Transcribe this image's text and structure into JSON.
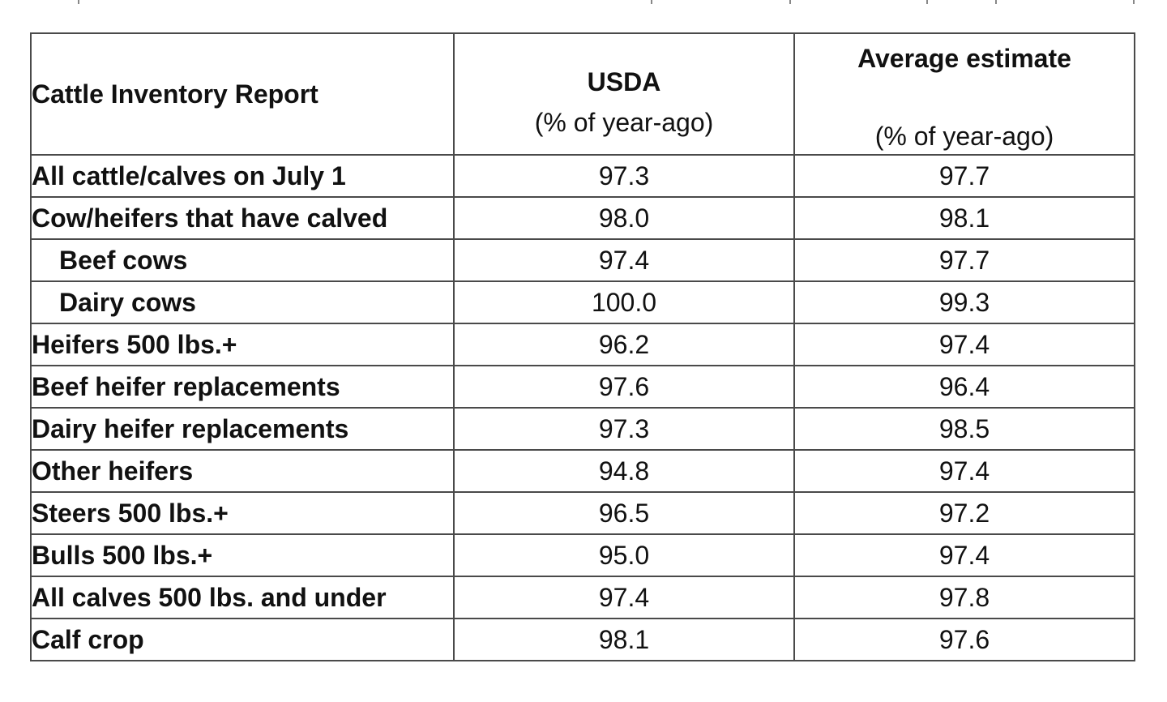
{
  "table": {
    "header": {
      "label": "Cattle Inventory Report",
      "usda_title": "USDA",
      "usda_sub": "(% of year-ago)",
      "avg_title": "Average estimate",
      "avg_sub": "(% of year-ago)"
    },
    "rows": [
      {
        "label": "All cattle/calves on July 1",
        "usda": "97.3",
        "avg": "97.7",
        "indent": false
      },
      {
        "label": "Cow/heifers that have calved",
        "usda": "98.0",
        "avg": "98.1",
        "indent": false
      },
      {
        "label": "Beef cows",
        "usda": "97.4",
        "avg": "97.7",
        "indent": true
      },
      {
        "label": "Dairy cows",
        "usda": "100.0",
        "avg": "99.3",
        "indent": true
      },
      {
        "label": "Heifers 500 lbs.+",
        "usda": "96.2",
        "avg": "97.4",
        "indent": false
      },
      {
        "label": "Beef heifer replacements",
        "usda": "97.6",
        "avg": "96.4",
        "indent": false
      },
      {
        "label": "Dairy heifer replacements",
        "usda": "97.3",
        "avg": "98.5",
        "indent": false
      },
      {
        "label": "Other heifers",
        "usda": "94.8",
        "avg": "97.4",
        "indent": false
      },
      {
        "label": "Steers 500 lbs.+",
        "usda": "96.5",
        "avg": "97.2",
        "indent": false
      },
      {
        "label": "Bulls 500 lbs.+",
        "usda": "95.0",
        "avg": "97.4",
        "indent": false
      },
      {
        "label": "All calves 500 lbs. and under",
        "usda": "97.4",
        "avg": "97.8",
        "indent": false
      },
      {
        "label": "Calf crop",
        "usda": "98.1",
        "avg": "97.6",
        "indent": false
      }
    ]
  }
}
